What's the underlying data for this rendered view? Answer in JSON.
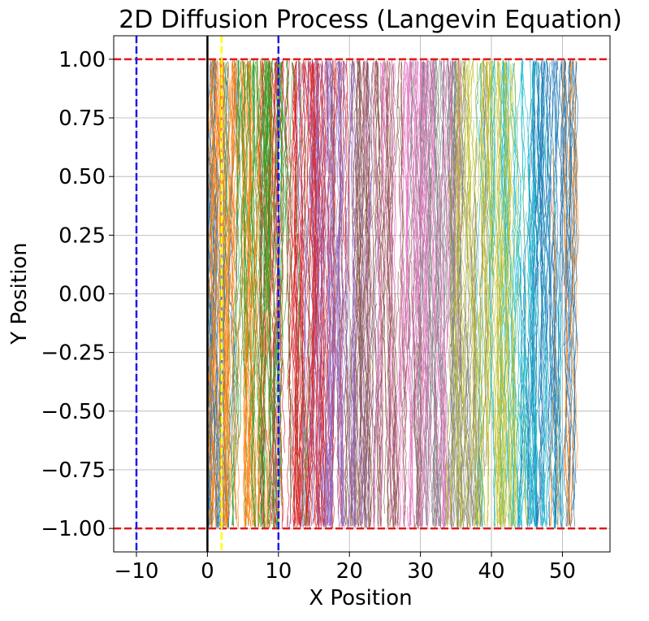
{
  "chart_data": {
    "type": "line",
    "title": "2D Diffusion Process (Langevin Equation)",
    "xlabel": "X Position",
    "ylabel": "Y Position",
    "xlim": [
      -13.2,
      56.7
    ],
    "ylim": [
      -1.1,
      1.1
    ],
    "x_ticks": [
      -10,
      0,
      10,
      20,
      30,
      40,
      50
    ],
    "x_tick_labels": [
      "−10",
      "0",
      "10",
      "20",
      "30",
      "40",
      "50"
    ],
    "y_ticks": [
      1.0,
      0.75,
      0.5,
      0.25,
      0.0,
      -0.25,
      -0.5,
      -0.75,
      -1.0
    ],
    "y_tick_labels": [
      "1.00",
      "0.75",
      "0.50",
      "0.25",
      "0.00",
      "−0.25",
      "−0.50",
      "−0.75",
      "−1.00"
    ],
    "grid": true,
    "reference_lines": [
      {
        "orientation": "horizontal",
        "value": 1.0,
        "color": "#e3191c",
        "style": "dashed"
      },
      {
        "orientation": "horizontal",
        "value": -1.0,
        "color": "#e3191c",
        "style": "dashed"
      },
      {
        "orientation": "vertical",
        "value": -10,
        "color": "#1c1ce6",
        "style": "dashed"
      },
      {
        "orientation": "vertical",
        "value": 10,
        "color": "#1c1ce6",
        "style": "dashed"
      },
      {
        "orientation": "vertical",
        "value": 0,
        "color": "#000000",
        "style": "solid"
      },
      {
        "orientation": "vertical",
        "value": 2,
        "color": "#ffff00",
        "style": "dashed"
      }
    ],
    "trajectories": {
      "x_range": [
        0,
        53
      ],
      "y_range": [
        -1.0,
        1.0
      ],
      "orientation": "vertical wandering paths confined between y = -1 and y = 1",
      "colors": [
        "#1f77b4",
        "#ff7f0e",
        "#2ca02c",
        "#d62728",
        "#9467bd",
        "#8c564b",
        "#e377c2",
        "#7f7f7f",
        "#bcbd22",
        "#17becf"
      ]
    }
  }
}
